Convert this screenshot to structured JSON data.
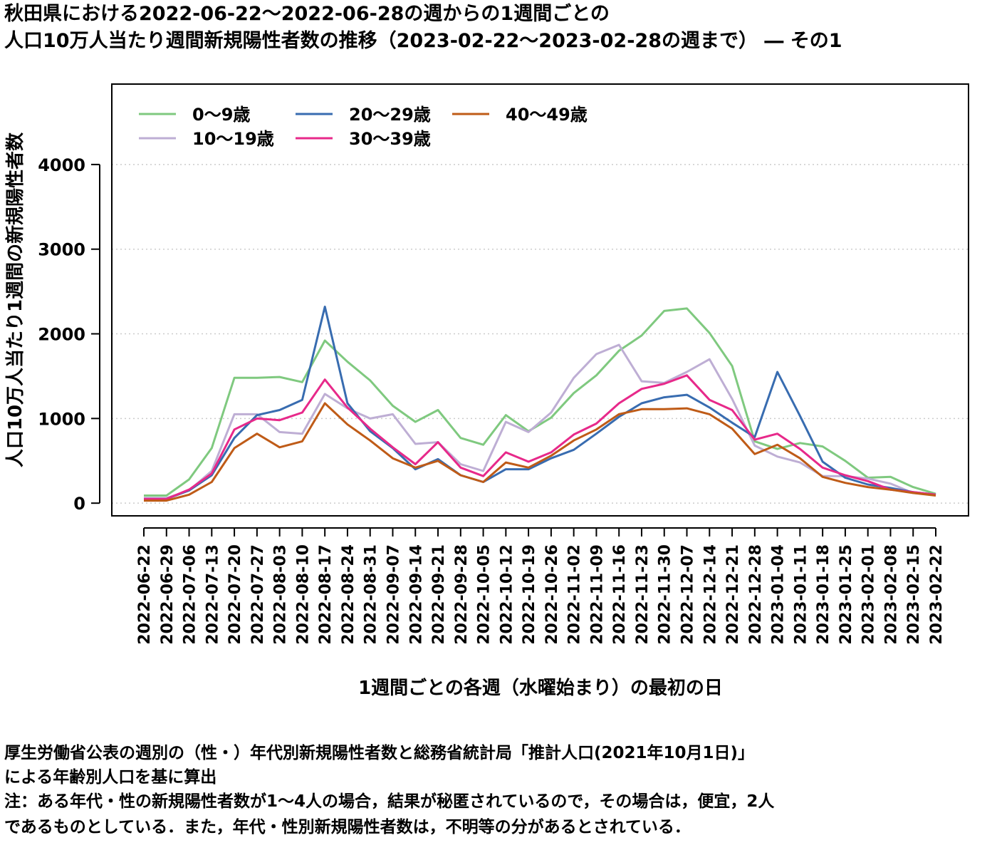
{
  "title": {
    "line1": "秋田県における2022-06-22～2022-06-28の週からの1週間ごとの",
    "line2": "人口10万人当たり週間新規陽性者数の推移（2023-02-22～2023-02-28の週まで） ― その1"
  },
  "notes": {
    "line1": "厚生労働省公表の週別の（性・）年代別新規陽性者数と総務省統計局「推計人口(2021年10月1日)」",
    "line2": "による年齢別人口を基に算出",
    "line3": "注：ある年代・性の新規陽性者数が1～4人の場合，結果が秘匿されているので，その場合は，便宜，2人",
    "line4": "であるものとしている．また，年代・性別新規陽性者数は，不明等の分があるとされている．"
  },
  "chart_data": {
    "type": "line",
    "xlabel": "1週間ごとの各週（水曜始まり）の最初の日",
    "ylabel": "人口10万人当たり1週間の新規陽性者数",
    "ylim": [
      -150,
      4950
    ],
    "yticks": [
      0,
      1000,
      2000,
      3000,
      4000
    ],
    "grid": "horizontal-dotted",
    "legend_position": "top-left",
    "x": [
      "2022-06-22",
      "2022-06-29",
      "2022-07-06",
      "2022-07-13",
      "2022-07-20",
      "2022-07-27",
      "2022-08-03",
      "2022-08-10",
      "2022-08-17",
      "2022-08-24",
      "2022-08-31",
      "2022-09-07",
      "2022-09-14",
      "2022-09-21",
      "2022-09-28",
      "2022-10-05",
      "2022-10-12",
      "2022-10-19",
      "2022-10-26",
      "2022-11-02",
      "2022-11-09",
      "2022-11-16",
      "2022-11-23",
      "2022-11-30",
      "2022-12-07",
      "2022-12-14",
      "2022-12-21",
      "2022-12-28",
      "2023-01-04",
      "2023-01-11",
      "2023-01-18",
      "2023-01-25",
      "2023-02-01",
      "2023-02-08",
      "2023-02-15",
      "2023-02-22"
    ],
    "series": [
      {
        "name": "0～9歳",
        "color": "#7fc97f",
        "values": [
          90,
          90,
          280,
          650,
          1480,
          1480,
          1490,
          1430,
          1920,
          1670,
          1450,
          1150,
          960,
          1100,
          770,
          690,
          1040,
          850,
          1010,
          1300,
          1510,
          1800,
          1980,
          2270,
          2300,
          2010,
          1620,
          730,
          640,
          710,
          670,
          500,
          300,
          310,
          190,
          110
        ]
      },
      {
        "name": "10～19歳",
        "color": "#beaed4",
        "values": [
          60,
          60,
          150,
          380,
          1050,
          1050,
          840,
          820,
          1290,
          1120,
          1000,
          1050,
          700,
          720,
          460,
          380,
          960,
          840,
          1070,
          1480,
          1760,
          1870,
          1440,
          1420,
          1550,
          1700,
          1230,
          680,
          550,
          480,
          320,
          320,
          290,
          230,
          120,
          100
        ]
      },
      {
        "name": "20～29歳",
        "color": "#386cb0",
        "values": [
          50,
          50,
          150,
          330,
          770,
          1040,
          1100,
          1220,
          2320,
          1180,
          850,
          650,
          400,
          520,
          330,
          250,
          400,
          400,
          530,
          630,
          820,
          1020,
          1180,
          1250,
          1280,
          1130,
          950,
          780,
          1550,
          1030,
          490,
          300,
          220,
          180,
          130,
          100
        ]
      },
      {
        "name": "30～39歳",
        "color": "#e7298a",
        "values": [
          50,
          50,
          160,
          350,
          870,
          1000,
          980,
          1070,
          1460,
          1130,
          880,
          660,
          460,
          720,
          420,
          320,
          600,
          490,
          600,
          810,
          940,
          1180,
          1350,
          1410,
          1510,
          1220,
          1100,
          750,
          820,
          640,
          420,
          330,
          260,
          160,
          130,
          100
        ]
      },
      {
        "name": "40～49歳",
        "color": "#bf5b17",
        "values": [
          30,
          30,
          100,
          250,
          650,
          820,
          660,
          730,
          1180,
          930,
          740,
          530,
          420,
          500,
          330,
          250,
          480,
          420,
          560,
          740,
          870,
          1050,
          1110,
          1110,
          1120,
          1050,
          880,
          580,
          690,
          530,
          310,
          240,
          190,
          160,
          120,
          90
        ]
      }
    ]
  }
}
